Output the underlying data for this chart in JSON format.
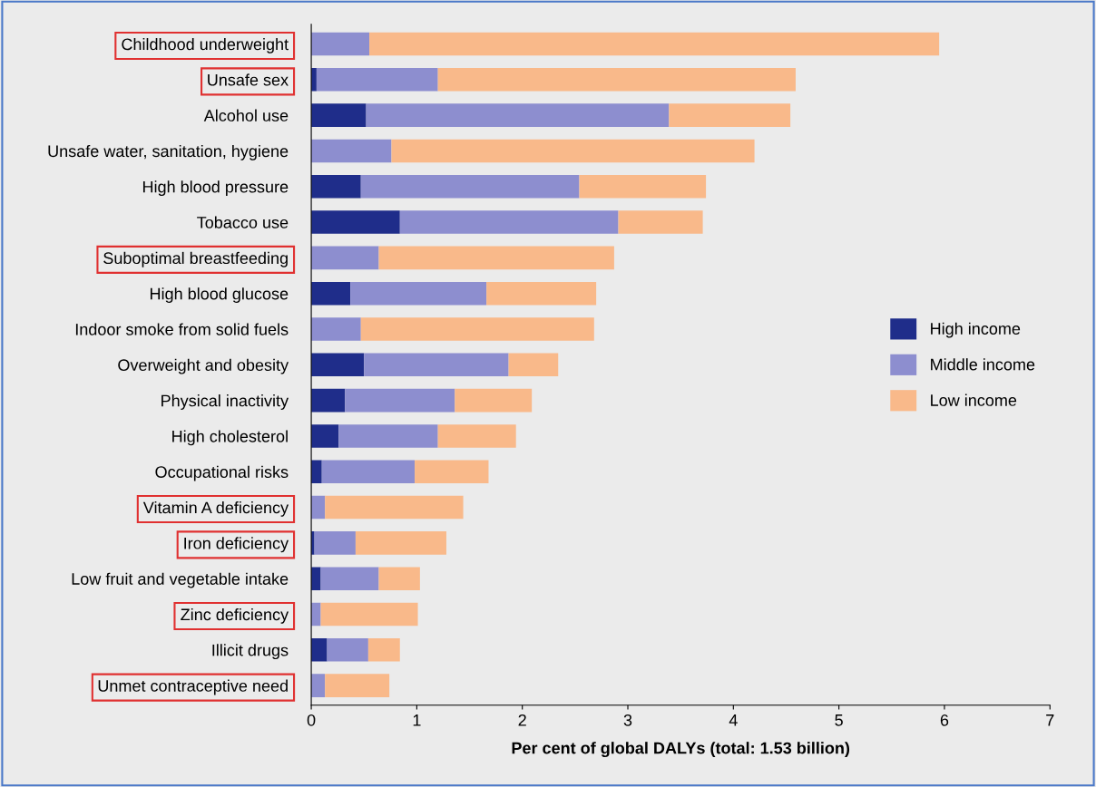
{
  "chart_data": {
    "type": "bar",
    "orientation": "horizontal",
    "stacked": true,
    "xlabel": "Per cent of global DALYs (total: 1.53 billion)",
    "categories": [
      "Childhood underweight",
      "Unsafe sex",
      "Alcohol use",
      "Unsafe water, sanitation, hygiene",
      "High blood pressure",
      "Tobacco use",
      "Suboptimal breastfeeding",
      "High blood glucose",
      "Indoor smoke from solid fuels",
      "Overweight and obesity",
      "Physical inactivity",
      "High cholesterol",
      "Occupational risks",
      "Vitamin A deficiency",
      "Iron deficiency",
      "Low fruit and vegetable intake",
      "Zinc deficiency",
      "Illicit drugs",
      "Unmet contraceptive need"
    ],
    "series": [
      {
        "name": "High income",
        "color": "#1f2d8a",
        "values": [
          0,
          0.05,
          0.52,
          0,
          0.47,
          0.84,
          0,
          0.37,
          0,
          0.5,
          0.32,
          0.26,
          0.1,
          0,
          0.03,
          0.09,
          0,
          0.15,
          0
        ]
      },
      {
        "name": "Middle income",
        "color": "#8d8ecf",
        "values": [
          0.55,
          1.15,
          2.87,
          0.76,
          2.07,
          2.07,
          0.64,
          1.29,
          0.47,
          1.37,
          1.04,
          0.94,
          0.88,
          0.13,
          0.39,
          0.55,
          0.09,
          0.39,
          0.13
        ]
      },
      {
        "name": "Low income",
        "color": "#f9b98a",
        "values": [
          5.4,
          3.39,
          1.15,
          3.44,
          1.2,
          0.8,
          2.23,
          1.04,
          2.21,
          0.47,
          0.73,
          0.74,
          0.7,
          1.31,
          0.86,
          0.39,
          0.92,
          0.3,
          0.61
        ]
      }
    ],
    "xlim": [
      0,
      7
    ],
    "xticks": [
      0,
      1,
      2,
      3,
      4,
      5,
      6,
      7
    ],
    "grid": false,
    "legend": "right"
  }
}
